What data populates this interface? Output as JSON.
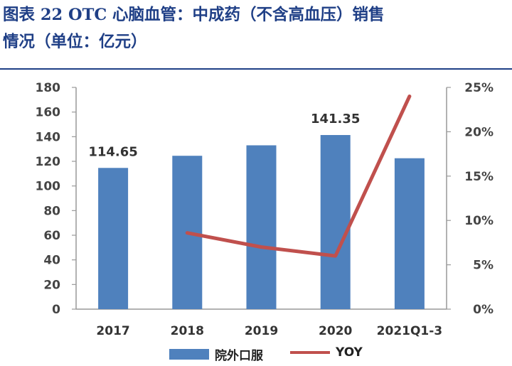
{
  "title": {
    "line1": "图表 22  OTC 心脑血管：中成药（不含高血压）销售",
    "line2": "情况（单位：亿元）"
  },
  "colors": {
    "bar": "#4f81bd",
    "line": "#c0504d",
    "title": "#1f3f86"
  },
  "chart_data": {
    "type": "bar",
    "categories": [
      "2017",
      "2018",
      "2019",
      "2020",
      "2021Q1-3"
    ],
    "series": [
      {
        "name": "院外口服",
        "kind": "bar",
        "axis": "left",
        "values": [
          114.65,
          124.5,
          133.0,
          141.35,
          122.5
        ]
      },
      {
        "name": "YOY",
        "kind": "line",
        "axis": "right",
        "values": [
          null,
          0.086,
          0.07,
          0.06,
          0.24
        ]
      }
    ],
    "data_labels": [
      {
        "index": 0,
        "text": "114.65"
      },
      {
        "index": 3,
        "text": "141.35"
      }
    ],
    "ylim_left": [
      0,
      180
    ],
    "yticks_left": [
      "0",
      "20",
      "40",
      "60",
      "80",
      "100",
      "120",
      "140",
      "160",
      "180"
    ],
    "ylim_right": [
      0,
      0.25
    ],
    "yticks_right": [
      "0%",
      "5%",
      "10%",
      "15%",
      "20%",
      "25%"
    ],
    "legend_position": "bottom",
    "grid": false
  }
}
